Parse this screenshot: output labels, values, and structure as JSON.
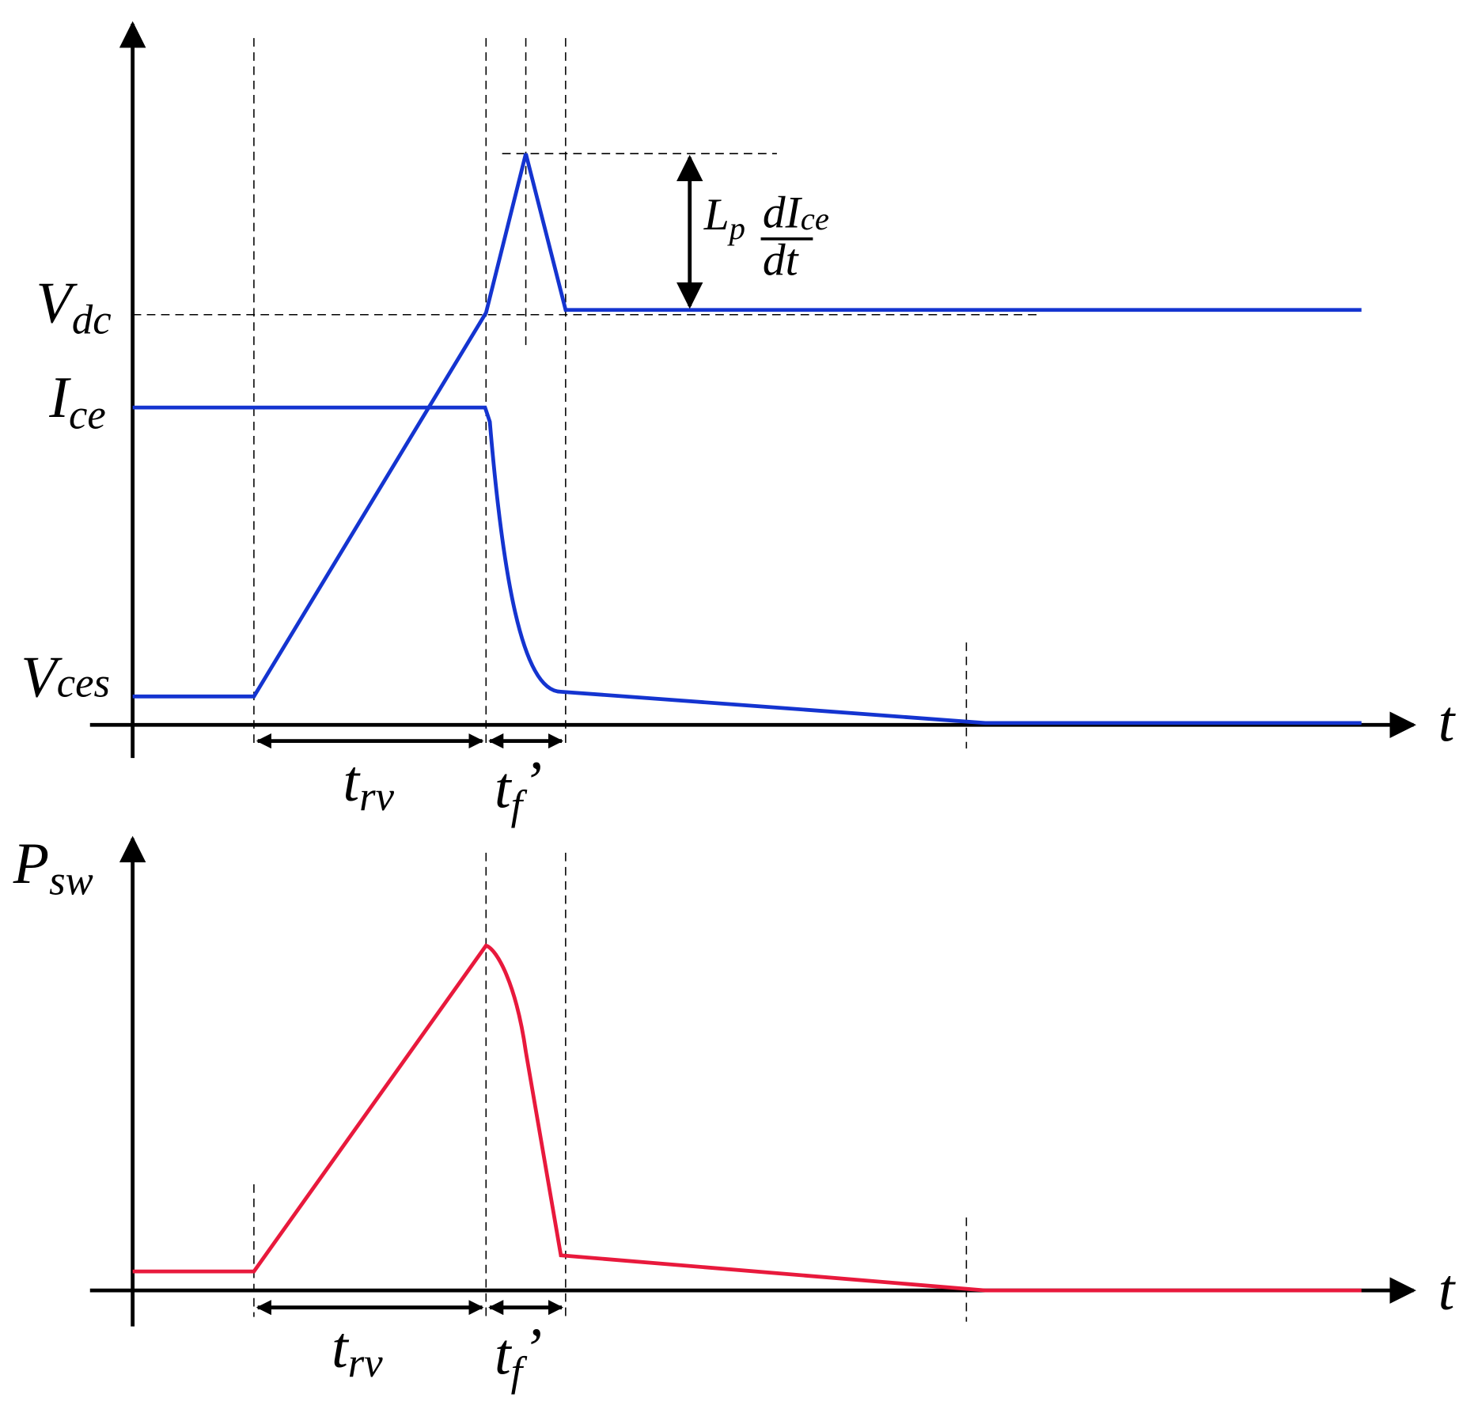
{
  "top_panel": {
    "y_labels": {
      "vdc": {
        "base": "V",
        "sub": "dc"
      },
      "ice": {
        "base": "I",
        "sub": "ce"
      },
      "vces": {
        "base": "V",
        "sub": "ces"
      }
    },
    "overshoot_label": {
      "base": "L",
      "sub": "p",
      "numerator": "dI",
      "numerator_sub": "ce",
      "denominator": "dt"
    },
    "x_axis_label": "t",
    "interval_labels": {
      "trv": {
        "base": "t",
        "sub": "rv"
      },
      "tf": {
        "base": "t",
        "sub": "f",
        "prime": "’"
      }
    }
  },
  "bottom_panel": {
    "y_label": {
      "base": "P",
      "sub": "sw"
    },
    "x_axis_label": "t",
    "interval_labels": {
      "trv": {
        "base": "t",
        "sub": "rv"
      },
      "tf": {
        "base": "t",
        "sub": "f",
        "prime": "’"
      }
    }
  }
}
